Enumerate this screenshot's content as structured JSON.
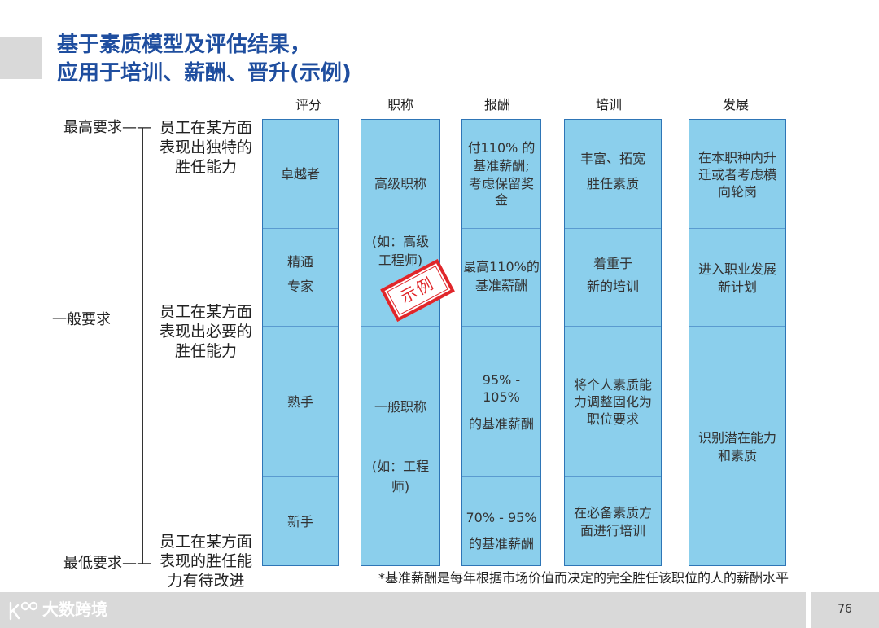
{
  "title": {
    "line1": "基于素质模型及评估结果，",
    "line2": "应用于培训、薪酬、晋升(示例)"
  },
  "requirement_levels": {
    "highest": {
      "label": "最高要求——",
      "description": [
        "员工在某方面",
        "表现出独特的",
        "胜任能力"
      ]
    },
    "general": {
      "label": "一般要求",
      "description": [
        "员工在某方面",
        "表现出必要的",
        "胜任能力"
      ]
    },
    "lowest": {
      "label": "最低要求——",
      "description": [
        "员工在某方面",
        "表现的胜任能",
        "力有待改进"
      ]
    }
  },
  "columns": [
    {
      "header": "评分",
      "cells": [
        [
          "卓越者"
        ],
        [
          "精通",
          "专家"
        ],
        [
          "熟手"
        ],
        [
          "新手"
        ]
      ]
    },
    {
      "header": "职称",
      "cells": [
        [
          "高级职称",
          "(如：高级",
          "工程师)"
        ],
        [
          "一般职称",
          "(如：工程",
          "师)"
        ]
      ]
    },
    {
      "header": "报酬",
      "cells": [
        [
          "付110% 的",
          "基准薪酬;",
          "考虑保留奖",
          "金"
        ],
        [
          "最高110%的",
          "基准薪酬"
        ],
        [
          "95% -",
          "105%",
          "的基准薪酬"
        ],
        [
          "70% - 95%",
          "的基准薪酬"
        ]
      ]
    },
    {
      "header": "培训",
      "cells": [
        [
          "丰富、拓宽",
          "胜任素质"
        ],
        [
          "着重于",
          "新的培训"
        ],
        [
          "将个人素质能",
          "力调整固化为",
          "职位要求"
        ],
        [
          "在必备素质方",
          "面进行培训"
        ]
      ]
    },
    {
      "header": "发展",
      "cells": [
        [
          "在本职种内升",
          "迁或者考虑横",
          "向轮岗"
        ],
        [
          "进入职业发展",
          "新计划"
        ],
        [
          "识别潜在能力",
          "和素质"
        ]
      ]
    }
  ],
  "stamp": "示例",
  "footnote": "*基准薪酬是每年根据市场价值而决定的完全胜任该职位的人的薪酬水平",
  "footer": {
    "logo_text": "大数跨境",
    "logo_icon": "brand-logo-icon",
    "page_number": "76"
  },
  "colors": {
    "title": "#1f4e9f",
    "box_fill": "#8bcfec",
    "box_border": "#2e75b6",
    "stamp": "#e0262a",
    "footer": "#d9d9d9"
  }
}
